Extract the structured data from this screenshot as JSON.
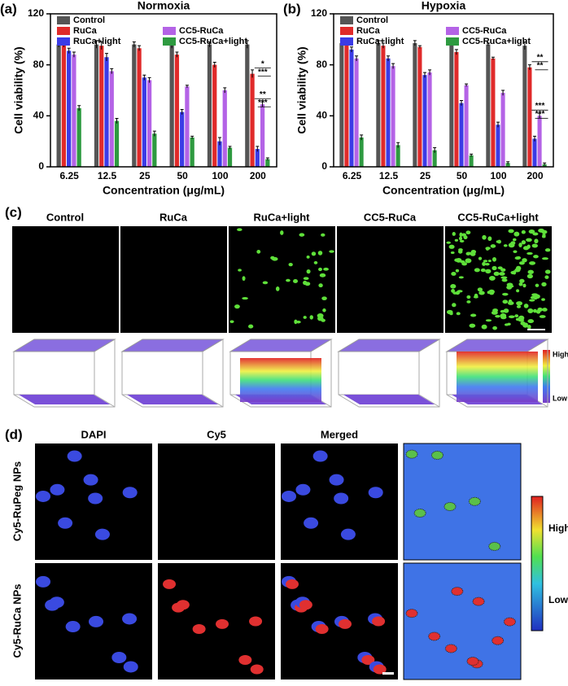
{
  "chart_data": [
    {
      "type": "bar",
      "panel_label": "(a)",
      "title": "Normoxia",
      "x_label": "Concentration (μg/mL)",
      "y_label": "Cell viability (%)",
      "categories": [
        "6.25",
        "12.5",
        "25",
        "50",
        "100",
        "200"
      ],
      "series": [
        {
          "name": "Control",
          "color": "#555555",
          "values": [
            96,
            96,
            96,
            96,
            96,
            96
          ],
          "errors": [
            2,
            3,
            2,
            3,
            2,
            3
          ]
        },
        {
          "name": "RuCa",
          "color": "#e02a2a",
          "values": [
            96,
            95,
            93,
            88,
            80,
            73
          ],
          "errors": [
            2,
            3,
            2,
            2,
            2,
            3
          ]
        },
        {
          "name": "RuCa+light",
          "color": "#3b3be6",
          "values": [
            91,
            86,
            70,
            43,
            20,
            14
          ],
          "errors": [
            2,
            3,
            2,
            2,
            3,
            2
          ]
        },
        {
          "name": "CC5-RuCa",
          "color": "#b463e6",
          "values": [
            88,
            75,
            68,
            63,
            60,
            49
          ],
          "errors": [
            2,
            2,
            2,
            1,
            2,
            2
          ]
        },
        {
          "name": "CC5-RuCa+light",
          "color": "#2e9a40",
          "values": [
            46,
            36,
            26,
            23,
            15,
            6
          ],
          "errors": [
            2,
            2,
            2,
            1,
            1,
            1
          ]
        }
      ],
      "ylim": [
        0,
        120
      ],
      "yticks": [
        0,
        40,
        80,
        120
      ],
      "legend": "top",
      "annotations": [
        "*",
        "***",
        "**",
        "***"
      ]
    },
    {
      "type": "bar",
      "panel_label": "(b)",
      "title": "Hypoxia",
      "x_label": "Concentration (μg/mL)",
      "y_label": "Cell viability (%)",
      "categories": [
        "6.25",
        "12.5",
        "25",
        "50",
        "100",
        "200"
      ],
      "series": [
        {
          "name": "Control",
          "color": "#555555",
          "values": [
            97,
            97,
            97,
            97,
            96,
            95
          ],
          "errors": [
            2,
            2,
            2,
            2,
            1,
            3
          ]
        },
        {
          "name": "RuCa",
          "color": "#e02a2a",
          "values": [
            97,
            95,
            94,
            90,
            85,
            78
          ],
          "errors": [
            2,
            2,
            1,
            2,
            1,
            2
          ]
        },
        {
          "name": "RuCa+light",
          "color": "#3b3be6",
          "values": [
            92,
            85,
            72,
            50,
            33,
            22
          ],
          "errors": [
            2,
            2,
            2,
            2,
            2,
            2
          ]
        },
        {
          "name": "CC5-RuCa",
          "color": "#b463e6",
          "values": [
            85,
            79,
            74,
            64,
            58,
            40
          ],
          "errors": [
            2,
            2,
            2,
            1,
            2,
            2
          ]
        },
        {
          "name": "CC5-RuCa+light",
          "color": "#2e9a40",
          "values": [
            23,
            17,
            13,
            9,
            3,
            2
          ],
          "errors": [
            2,
            2,
            2,
            1,
            1,
            1
          ]
        }
      ],
      "ylim": [
        0,
        120
      ],
      "yticks": [
        0,
        40,
        80,
        120
      ],
      "legend": "top",
      "annotations": [
        "**",
        "**",
        "***",
        "***"
      ]
    }
  ],
  "panel_c": {
    "label": "(c)",
    "columns": [
      "Control",
      "RuCa",
      "RuCa+light",
      "CC5-RuCa",
      "CC5-RuCa+light"
    ],
    "scale_high": "High",
    "scale_low": "Low"
  },
  "panel_d": {
    "label": "(d)",
    "columns": [
      "DAPI",
      "Cy5",
      "Merged"
    ],
    "rows": [
      "Cy5-RuPeg NPs",
      "Cy5-RuCa NPs"
    ],
    "scale_high": "High",
    "scale_low": "Low"
  }
}
